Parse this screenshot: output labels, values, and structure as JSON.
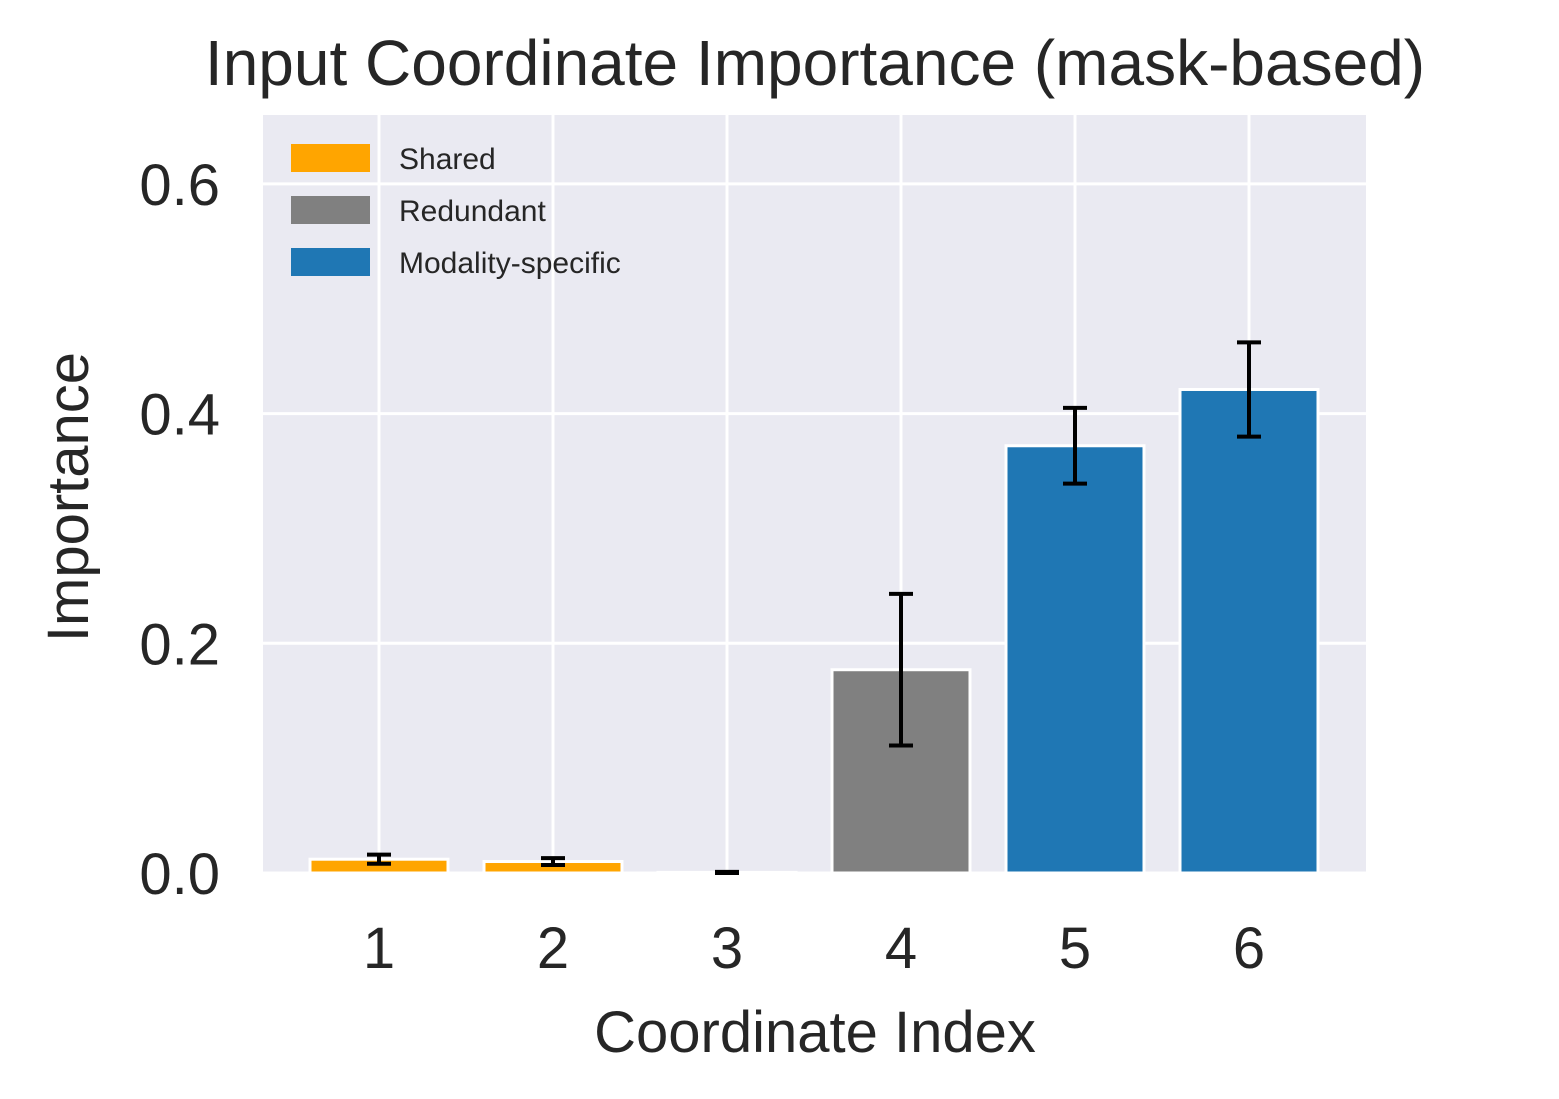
{
  "chart_data": {
    "type": "bar",
    "title": "Input Coordinate Importance (mask-based)",
    "xlabel": "Coordinate Index",
    "ylabel": "Importance",
    "categories": [
      "1",
      "2",
      "3",
      "4",
      "5",
      "6"
    ],
    "values": [
      0.012,
      0.01,
      0.0005,
      0.177,
      0.372,
      0.421
    ],
    "errors": [
      0.004,
      0.003,
      0.0005,
      0.066,
      0.033,
      0.041
    ],
    "bar_groups": [
      "Shared",
      "Shared",
      "Shared",
      "Redundant",
      "Modality-specific",
      "Modality-specific"
    ],
    "ylim": [
      0,
      0.66
    ],
    "yticks": [
      0.0,
      0.2,
      0.4,
      0.6
    ],
    "ytick_labels": [
      "0.0",
      "0.2",
      "0.4",
      "0.6"
    ],
    "grid": true,
    "legend": {
      "placement": "top-left",
      "entries": [
        {
          "label": "Shared",
          "color": "#FFA500"
        },
        {
          "label": "Redundant",
          "color": "#808080"
        },
        {
          "label": "Modality-specific",
          "color": "#1F77B4"
        }
      ]
    },
    "colors": {
      "plot_background": "#EAEAF2",
      "grid": "#FFFFFF",
      "errorbar": "#000000"
    }
  }
}
